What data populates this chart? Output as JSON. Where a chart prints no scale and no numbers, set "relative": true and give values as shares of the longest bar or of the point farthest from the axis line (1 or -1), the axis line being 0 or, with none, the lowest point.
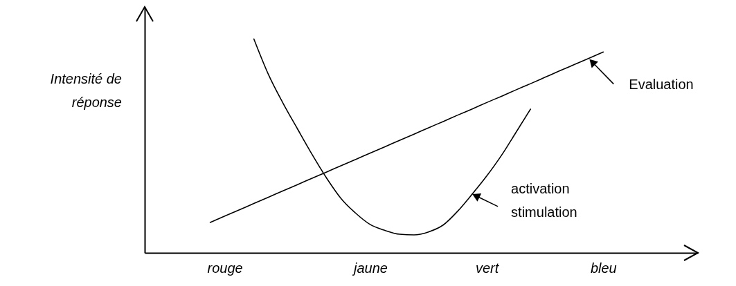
{
  "chart_data": {
    "type": "line",
    "relative": true,
    "annotations": [
      "Intensité de réponse"
    ],
    "categories": [
      null,
      null,
      null,
      null,
      null,
      "rouge",
      null,
      null,
      null,
      null,
      null,
      null,
      null,
      null,
      null,
      "jaune",
      null,
      null,
      null,
      null,
      null,
      null,
      null,
      "vert",
      null,
      null,
      null,
      null,
      null,
      null,
      null,
      "bleu",
      null,
      null,
      null,
      null,
      null,
      null
    ],
    "grid": false,
    "marker": "none",
    "line_style": "solid",
    "series": [
      {
        "name": "activation stimulation",
        "color": "#000000",
        "values": [
          null,
          null,
          null,
          null,
          null,
          null,
          null,
          1.0,
          0.834,
          0.7,
          0.579,
          0.46,
          0.349,
          0.253,
          0.185,
          0.132,
          0.105,
          0.087,
          0.084,
          0.098,
          0.13,
          0.195,
          0.275,
          0.36,
          0.455,
          0.563,
          0.672,
          null,
          null,
          null,
          null,
          null,
          null,
          null,
          null,
          null,
          null,
          null
        ]
      },
      {
        "name": "Evaluation",
        "color": "#000000",
        "values": [
          null,
          null,
          null,
          null,
          0.142,
          0.172,
          0.201,
          0.231,
          0.26,
          0.29,
          0.319,
          0.349,
          0.378,
          0.408,
          0.437,
          0.467,
          0.496,
          0.526,
          0.555,
          0.585,
          0.614,
          0.644,
          0.673,
          0.703,
          0.732,
          0.762,
          0.791,
          0.821,
          0.851,
          0.88,
          0.909,
          0.939,
          null,
          null,
          null,
          null,
          null,
          null
        ]
      }
    ]
  }
}
